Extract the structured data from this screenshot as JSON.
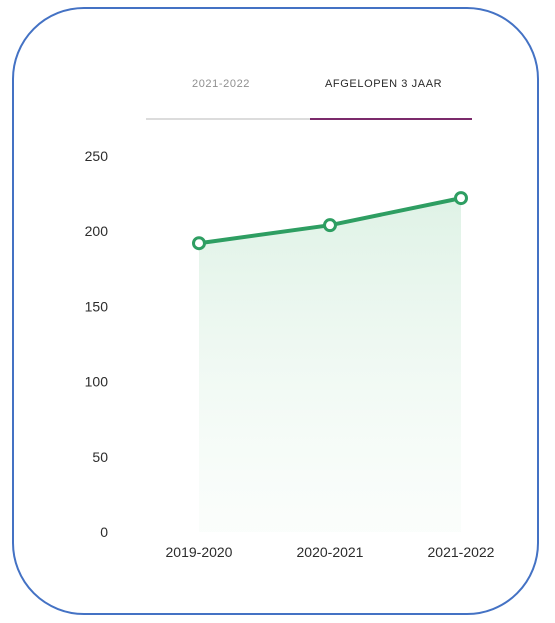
{
  "tabs": [
    {
      "label": "2021-2022",
      "active": false
    },
    {
      "label": "AFGELOPEN 3 JAAR",
      "active": true
    }
  ],
  "colors": {
    "accent": "#7b2a6b",
    "line": "#2e9e62",
    "fill": "#e6f5ec",
    "frame": "#4472c4"
  },
  "chart_data": {
    "type": "area",
    "categories": [
      "2019-2020",
      "2020-2021",
      "2021-2022"
    ],
    "series": [
      {
        "values": [
          192,
          204,
          222
        ]
      }
    ],
    "ylim": [
      0,
      250
    ],
    "yticks": [
      0,
      50,
      100,
      150,
      200,
      250
    ],
    "title": "",
    "xlabel": "",
    "ylabel": "",
    "grid": false,
    "legend": "none"
  }
}
